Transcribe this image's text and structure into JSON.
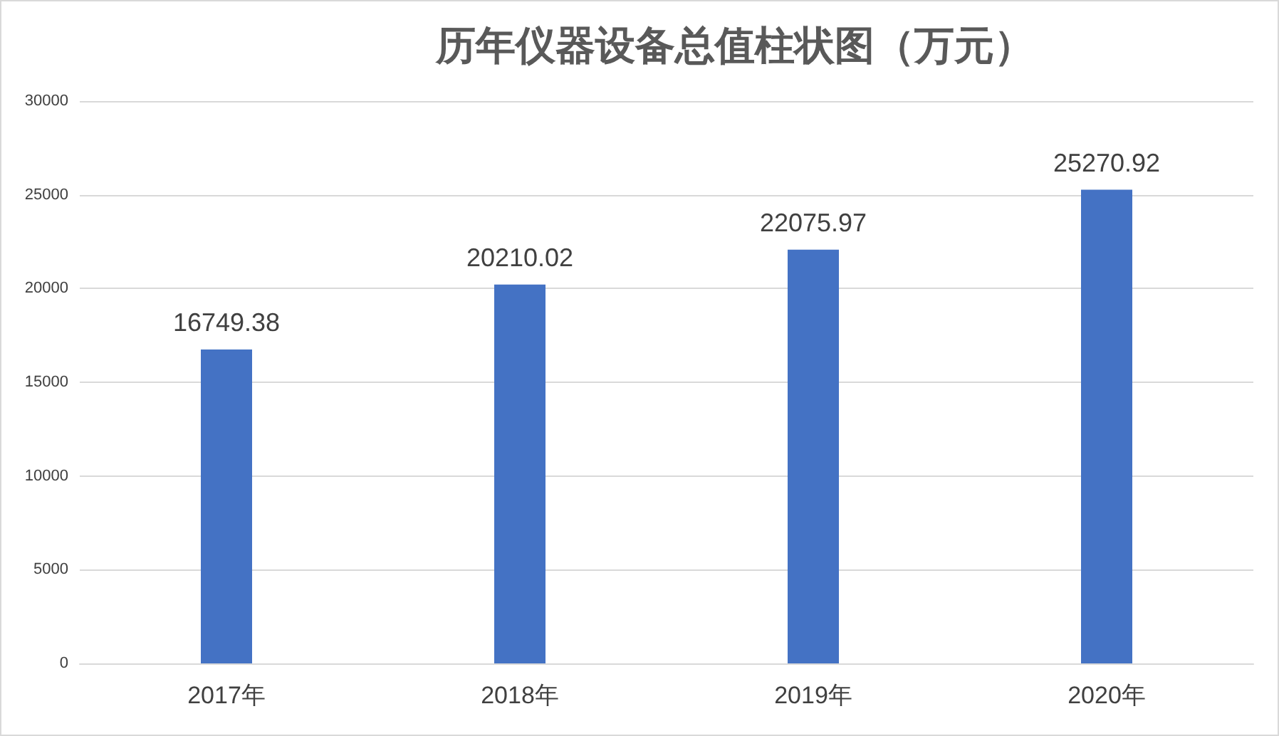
{
  "chart_data": {
    "type": "bar",
    "title": "历年仪器设备总值柱状图（万元）",
    "categories": [
      "2017年",
      "2018年",
      "2019年",
      "2020年"
    ],
    "values": [
      16749.38,
      20210.02,
      22075.97,
      25270.92
    ],
    "color": "#4472c4",
    "ylim": [
      0,
      30000
    ],
    "yticks": [
      0,
      5000,
      10000,
      15000,
      20000,
      25000,
      30000
    ],
    "grid": "y",
    "data_labels": true
  }
}
